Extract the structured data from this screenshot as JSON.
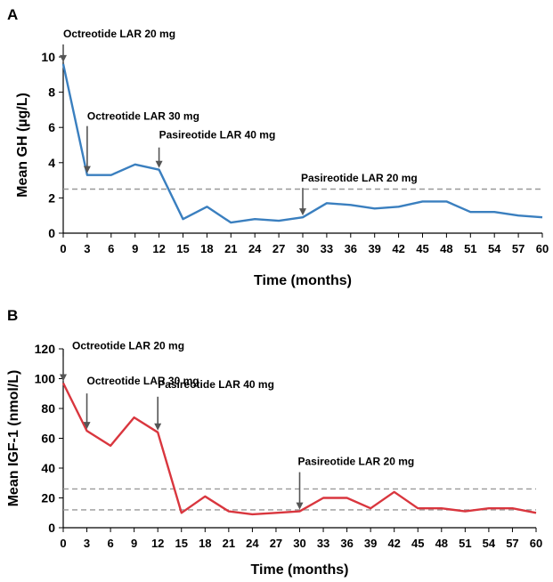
{
  "chart_data": [
    {
      "panel": "A",
      "type": "line",
      "ylabel": "Mean GH (µg/L)",
      "xlabel": "Time (months)",
      "ylim": [
        0,
        10
      ],
      "yticks": [
        0,
        2,
        4,
        6,
        8,
        10
      ],
      "xlim": [
        0,
        60
      ],
      "xticks": [
        0,
        3,
        6,
        9,
        12,
        15,
        18,
        21,
        24,
        27,
        30,
        33,
        36,
        39,
        42,
        45,
        48,
        51,
        54,
        57,
        60
      ],
      "line_color": "#3a7fbf",
      "series": [
        {
          "x": [
            0,
            3,
            6,
            9,
            12,
            15,
            18,
            21,
            24,
            27,
            30,
            33,
            36,
            39,
            42,
            45,
            48,
            51,
            54,
            57,
            60
          ],
          "values": [
            9.6,
            3.3,
            3.3,
            3.9,
            3.6,
            0.8,
            1.5,
            0.6,
            0.8,
            0.7,
            0.9,
            1.7,
            1.6,
            1.4,
            1.5,
            1.8,
            1.8,
            1.2,
            1.2,
            1.0,
            0.9
          ]
        }
      ],
      "reference_lines": [
        2.5
      ],
      "annotations": [
        {
          "text": "Octreotide LAR 20 mg",
          "x": 0,
          "y": 9.6
        },
        {
          "text": "Octreotide LAR 30 mg",
          "x": 3,
          "y": 3.3
        },
        {
          "text": "Pasireotide LAR 40 mg",
          "x": 12,
          "y": 3.6
        },
        {
          "text": "Pasireotide LAR 20 mg",
          "x": 30,
          "y": 0.9
        }
      ],
      "grid": false
    },
    {
      "panel": "B",
      "type": "line",
      "ylabel": "Mean IGF-1 (nmol/L)",
      "xlabel": "Time (months)",
      "ylim": [
        0,
        120
      ],
      "yticks": [
        0,
        20,
        40,
        60,
        80,
        100,
        120
      ],
      "xlim": [
        0,
        60
      ],
      "xticks": [
        0,
        3,
        6,
        9,
        12,
        15,
        18,
        21,
        24,
        27,
        30,
        33,
        36,
        39,
        42,
        45,
        48,
        51,
        54,
        57,
        60
      ],
      "line_color": "#d9363e",
      "series": [
        {
          "x": [
            0,
            3,
            6,
            9,
            12,
            15,
            18,
            21,
            24,
            27,
            30,
            33,
            36,
            39,
            42,
            45,
            48,
            51,
            54,
            57,
            60
          ],
          "values": [
            97,
            65,
            55,
            74,
            64,
            10,
            21,
            11,
            9,
            10,
            11,
            20,
            20,
            13,
            24,
            13,
            13,
            11,
            13,
            13,
            10
          ]
        }
      ],
      "reference_lines": [
        26,
        12
      ],
      "annotations": [
        {
          "text": "Octreotide LAR 20 mg",
          "x": 0,
          "y": 97
        },
        {
          "text": "Octreotide LAR 30 mg",
          "x": 3,
          "y": 65
        },
        {
          "text": "Pasireotide LAR 40 mg",
          "x": 12,
          "y": 64
        },
        {
          "text": "Pasireotide LAR 20 mg",
          "x": 30,
          "y": 11
        }
      ],
      "grid": false
    }
  ]
}
